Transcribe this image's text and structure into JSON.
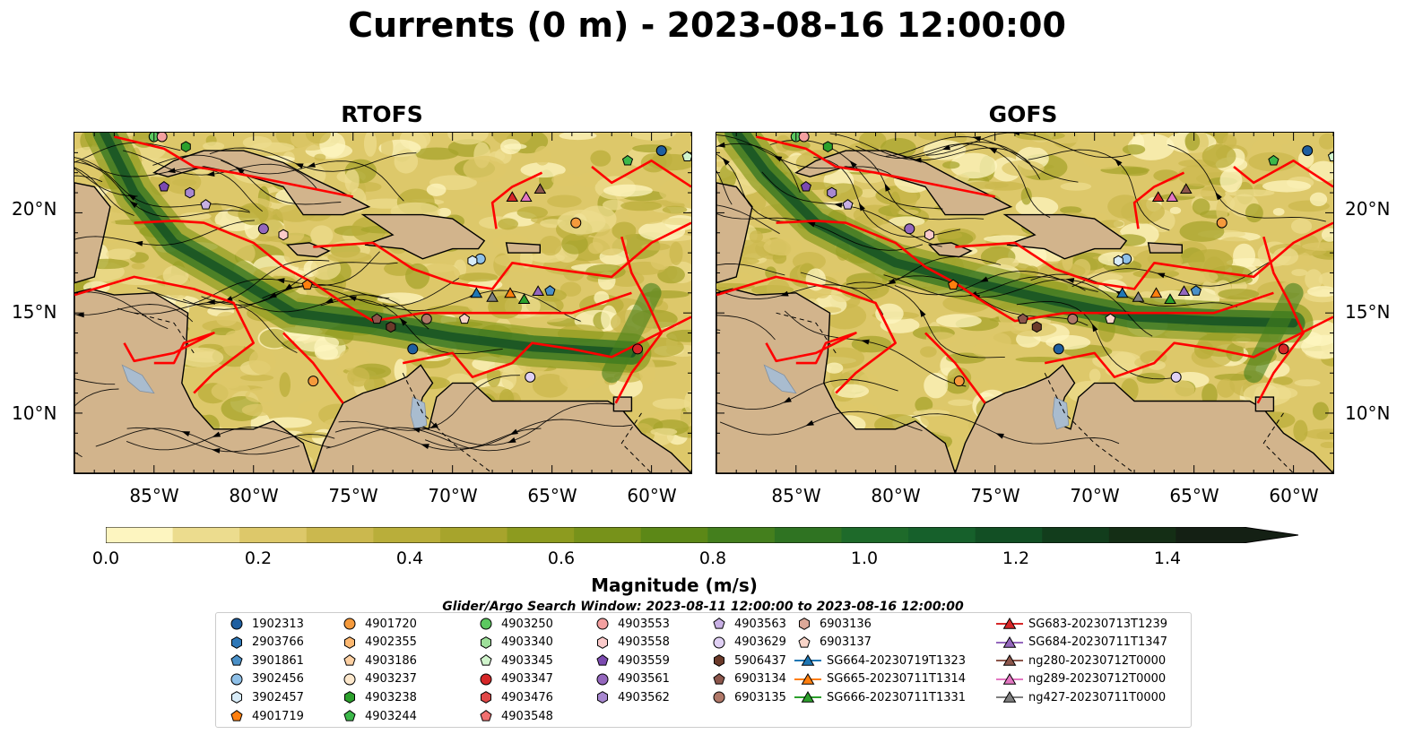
{
  "title": "Currents (0 m) - 2023-08-16 12:00:00",
  "panels": [
    {
      "title": "RTOFS"
    },
    {
      "title": "GOFS"
    }
  ],
  "map_extent": {
    "lon": [
      -89,
      -58
    ],
    "lat": [
      7,
      24
    ]
  },
  "lat_labels": [
    "20°N",
    "15°N",
    "10°N"
  ],
  "lon_labels": [
    "85°W",
    "80°W",
    "75°W",
    "70°W",
    "65°W",
    "60°W"
  ],
  "colorbar": {
    "label": "Magnitude (m/s)",
    "ticks": [
      "0.0",
      "0.2",
      "0.4",
      "0.6",
      "0.8",
      "1.0",
      "1.2",
      "1.4"
    ],
    "colors": [
      "#fdf5c0",
      "#ecdc8e",
      "#ddc86a",
      "#cbb84e",
      "#b9ae3a",
      "#a7a42c",
      "#8d9b1f",
      "#77921a",
      "#5c8817",
      "#447f1d",
      "#2f7322",
      "#1e6a2a",
      "#16602b",
      "#124f24",
      "#123d1c",
      "#142e15",
      "#142014"
    ]
  },
  "search_window": "Glider/Argo Search Window: 2023-08-11 12:00:00 to 2023-08-16 12:00:00",
  "land_color": "#d2b48c",
  "track_color": "#ff0000",
  "legend": [
    {
      "label": "1902313",
      "marker": "circle",
      "color": "#1f5fa0"
    },
    {
      "label": "2903766",
      "marker": "hexagon",
      "color": "#2e78b8"
    },
    {
      "label": "3901861",
      "marker": "pentagon",
      "color": "#4a90c8"
    },
    {
      "label": "3902456",
      "marker": "circle",
      "color": "#8ec0e8"
    },
    {
      "label": "3902457",
      "marker": "hexagon",
      "color": "#d8ecf8"
    },
    {
      "label": "4901719",
      "marker": "pentagon",
      "color": "#ff7f0e"
    },
    {
      "label": "4901720",
      "marker": "circle",
      "color": "#f59a3c"
    },
    {
      "label": "4902355",
      "marker": "hexagon",
      "color": "#fdb871"
    },
    {
      "label": "4903186",
      "marker": "pentagon",
      "color": "#fdd0a2"
    },
    {
      "label": "4903237",
      "marker": "circle",
      "color": "#fde8cc"
    },
    {
      "label": "4903238",
      "marker": "hexagon",
      "color": "#2ca02c"
    },
    {
      "label": "4903244",
      "marker": "pentagon",
      "color": "#3cb84a"
    },
    {
      "label": "4903250",
      "marker": "circle",
      "color": "#5cc860"
    },
    {
      "label": "4903340",
      "marker": "hexagon",
      "color": "#9ee09a"
    },
    {
      "label": "4903345",
      "marker": "pentagon",
      "color": "#d0f4cc"
    },
    {
      "label": "4903347",
      "marker": "circle",
      "color": "#d62728"
    },
    {
      "label": "4903476",
      "marker": "hexagon",
      "color": "#e04848"
    },
    {
      "label": "4903548",
      "marker": "pentagon",
      "color": "#f07070"
    },
    {
      "label": "4903553",
      "marker": "circle",
      "color": "#f4a0a0"
    },
    {
      "label": "4903558",
      "marker": "hexagon",
      "color": "#fbcaca"
    },
    {
      "label": "4903559",
      "marker": "pentagon",
      "color": "#7b4ab0"
    },
    {
      "label": "4903561",
      "marker": "circle",
      "color": "#9467bd"
    },
    {
      "label": "4903562",
      "marker": "hexagon",
      "color": "#a888d0"
    },
    {
      "label": "4903563",
      "marker": "pentagon",
      "color": "#c8b0e4"
    },
    {
      "label": "4903629",
      "marker": "circle",
      "color": "#e0d0f4"
    },
    {
      "label": "5906437",
      "marker": "hexagon",
      "color": "#6b3a2a"
    },
    {
      "label": "6903134",
      "marker": "pentagon",
      "color": "#8c564b"
    },
    {
      "label": "6903135",
      "marker": "circle",
      "color": "#b07868"
    },
    {
      "label": "6903136",
      "marker": "hexagon",
      "color": "#dca898"
    },
    {
      "label": "6903137",
      "marker": "pentagon",
      "color": "#f8d4c8"
    },
    {
      "label": "SG664-20230719T1323",
      "marker": "triangle-line",
      "color": "#1f77b4"
    },
    {
      "label": "SG665-20230711T1314",
      "marker": "triangle-line",
      "color": "#ff7f0e"
    },
    {
      "label": "SG666-20230711T1331",
      "marker": "triangle-line",
      "color": "#2ca02c"
    },
    {
      "label": "SG683-20230713T1239",
      "marker": "triangle-line",
      "color": "#d62728"
    },
    {
      "label": "SG684-20230711T1347",
      "marker": "triangle-line",
      "color": "#9467bd"
    },
    {
      "label": "ng280-20230712T0000",
      "marker": "triangle-line",
      "color": "#8c564b"
    },
    {
      "label": "ng289-20230712T0000",
      "marker": "triangle-line",
      "color": "#e377c2"
    },
    {
      "label": "ng427-20230711T0000",
      "marker": "triangle-line",
      "color": "#7f7f7f"
    }
  ],
  "markers": [
    {
      "label": "1902313",
      "lon": -59.5,
      "lat": 23.1
    },
    {
      "label": "4903244",
      "lon": -61.2,
      "lat": 22.6
    },
    {
      "label": "4903345",
      "lon": -58.2,
      "lat": 22.8
    },
    {
      "label": "4903250",
      "lon": -85.0,
      "lat": 23.8
    },
    {
      "label": "4903238",
      "lon": -83.4,
      "lat": 23.3
    },
    {
      "label": "4903553",
      "lon": -84.6,
      "lat": 23.8
    },
    {
      "label": "4903559",
      "lon": -84.5,
      "lat": 21.3
    },
    {
      "label": "4903562",
      "lon": -83.2,
      "lat": 21.0
    },
    {
      "label": "4903563",
      "lon": -82.4,
      "lat": 20.4
    },
    {
      "label": "4903561",
      "lon": -79.5,
      "lat": 19.2
    },
    {
      "label": "4903558",
      "lon": -78.5,
      "lat": 18.9
    },
    {
      "label": "4901719",
      "lon": -77.3,
      "lat": 16.4
    },
    {
      "label": "4901720",
      "lon": -63.8,
      "lat": 19.5
    },
    {
      "label": "3902456",
      "lon": -68.6,
      "lat": 17.7
    },
    {
      "label": "3902457",
      "lon": -69.0,
      "lat": 17.6
    },
    {
      "label": "3901861",
      "lon": -65.1,
      "lat": 16.1
    },
    {
      "label": "6903134",
      "lon": -73.8,
      "lat": 14.7
    },
    {
      "label": "5906437",
      "lon": -73.1,
      "lat": 14.3
    },
    {
      "label": "6903135",
      "lon": -71.3,
      "lat": 14.7
    },
    {
      "label": "6903137",
      "lon": -69.4,
      "lat": 14.7
    },
    {
      "label": "1902313",
      "lon": -72.0,
      "lat": 13.2
    },
    {
      "label": "4903347",
      "lon": -60.7,
      "lat": 13.2
    },
    {
      "label": "4901720",
      "lon": -77.0,
      "lat": 11.6
    },
    {
      "label": "4903629",
      "lon": -66.1,
      "lat": 11.8
    },
    {
      "label": "SG664-20230719T1323",
      "lon": -68.8,
      "lat": 16.0
    },
    {
      "label": "ng427-20230711T0000",
      "lon": -68.0,
      "lat": 15.8
    },
    {
      "label": "SG665-20230711T1314",
      "lon": -67.1,
      "lat": 16.0
    },
    {
      "label": "SG666-20230711T1331",
      "lon": -66.4,
      "lat": 15.7
    },
    {
      "label": "SG684-20230711T1347",
      "lon": -65.7,
      "lat": 16.1
    },
    {
      "label": "SG683-20230713T1239",
      "lon": -67.0,
      "lat": 20.8
    },
    {
      "label": "ng289-20230712T0000",
      "lon": -66.3,
      "lat": 20.8
    },
    {
      "label": "ng280-20230712T0000",
      "lon": -65.6,
      "lat": 21.2
    }
  ]
}
